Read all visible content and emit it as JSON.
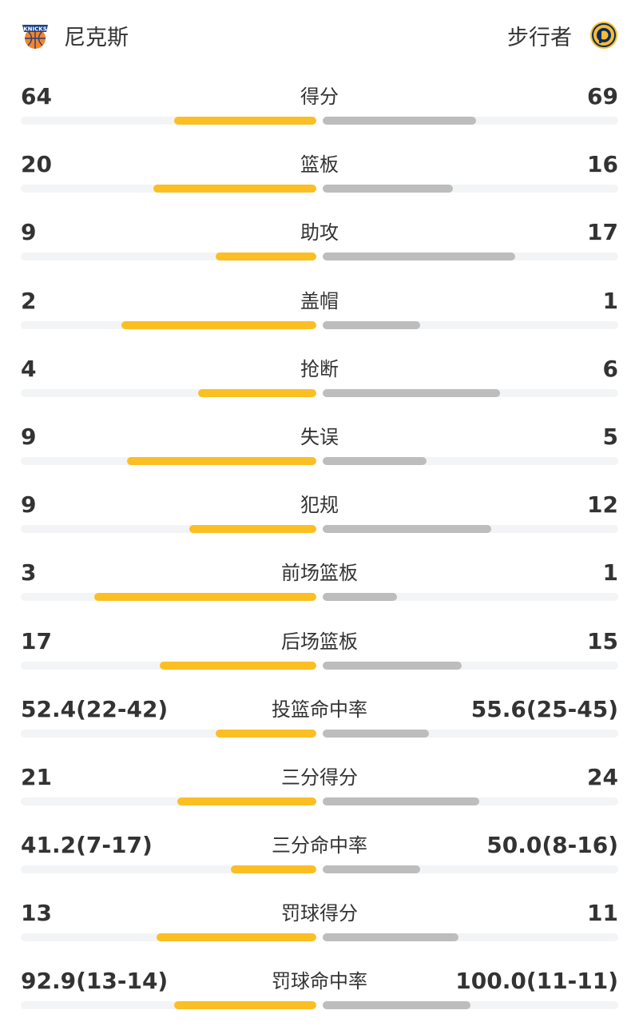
{
  "header": {
    "team_left": {
      "name": "尼克斯",
      "logo_icon": "knicks-logo-icon",
      "logo_text": "KNICKS"
    },
    "team_right": {
      "name": "步行者",
      "logo_icon": "pacers-logo-icon"
    }
  },
  "colors": {
    "left_bar": "#fbbf24",
    "right_bar": "#bdbdbd",
    "track": "#f3f4f6"
  },
  "stats": [
    {
      "label": "得分",
      "left": "64",
      "right": "69",
      "left_fill": 0.48,
      "right_fill": 0.52
    },
    {
      "label": "篮板",
      "left": "20",
      "right": "16",
      "left_fill": 0.55,
      "right_fill": 0.44
    },
    {
      "label": "助攻",
      "left": "9",
      "right": "17",
      "left_fill": 0.34,
      "right_fill": 0.65
    },
    {
      "label": "盖帽",
      "left": "2",
      "right": "1",
      "left_fill": 0.66,
      "right_fill": 0.33
    },
    {
      "label": "抢断",
      "left": "4",
      "right": "6",
      "left_fill": 0.4,
      "right_fill": 0.6
    },
    {
      "label": "失误",
      "left": "9",
      "right": "5",
      "left_fill": 0.64,
      "right_fill": 0.35
    },
    {
      "label": "犯规",
      "left": "9",
      "right": "12",
      "left_fill": 0.43,
      "right_fill": 0.57
    },
    {
      "label": "前场篮板",
      "left": "3",
      "right": "1",
      "left_fill": 0.75,
      "right_fill": 0.25
    },
    {
      "label": "后场篮板",
      "left": "17",
      "right": "15",
      "left_fill": 0.53,
      "right_fill": 0.47
    },
    {
      "label": "投篮命中率",
      "left": "52.4(22-42)",
      "right": "55.6(25-45)",
      "left_fill": 0.34,
      "right_fill": 0.36
    },
    {
      "label": "三分得分",
      "left": "21",
      "right": "24",
      "left_fill": 0.47,
      "right_fill": 0.53
    },
    {
      "label": "三分命中率",
      "left": "41.2(7-17)",
      "right": "50.0(8-16)",
      "left_fill": 0.29,
      "right_fill": 0.33
    },
    {
      "label": "罚球得分",
      "left": "13",
      "right": "11",
      "left_fill": 0.54,
      "right_fill": 0.46
    },
    {
      "label": "罚球命中率",
      "left": "92.9(13-14)",
      "right": "100.0(11-11)",
      "left_fill": 0.48,
      "right_fill": 0.5
    }
  ]
}
